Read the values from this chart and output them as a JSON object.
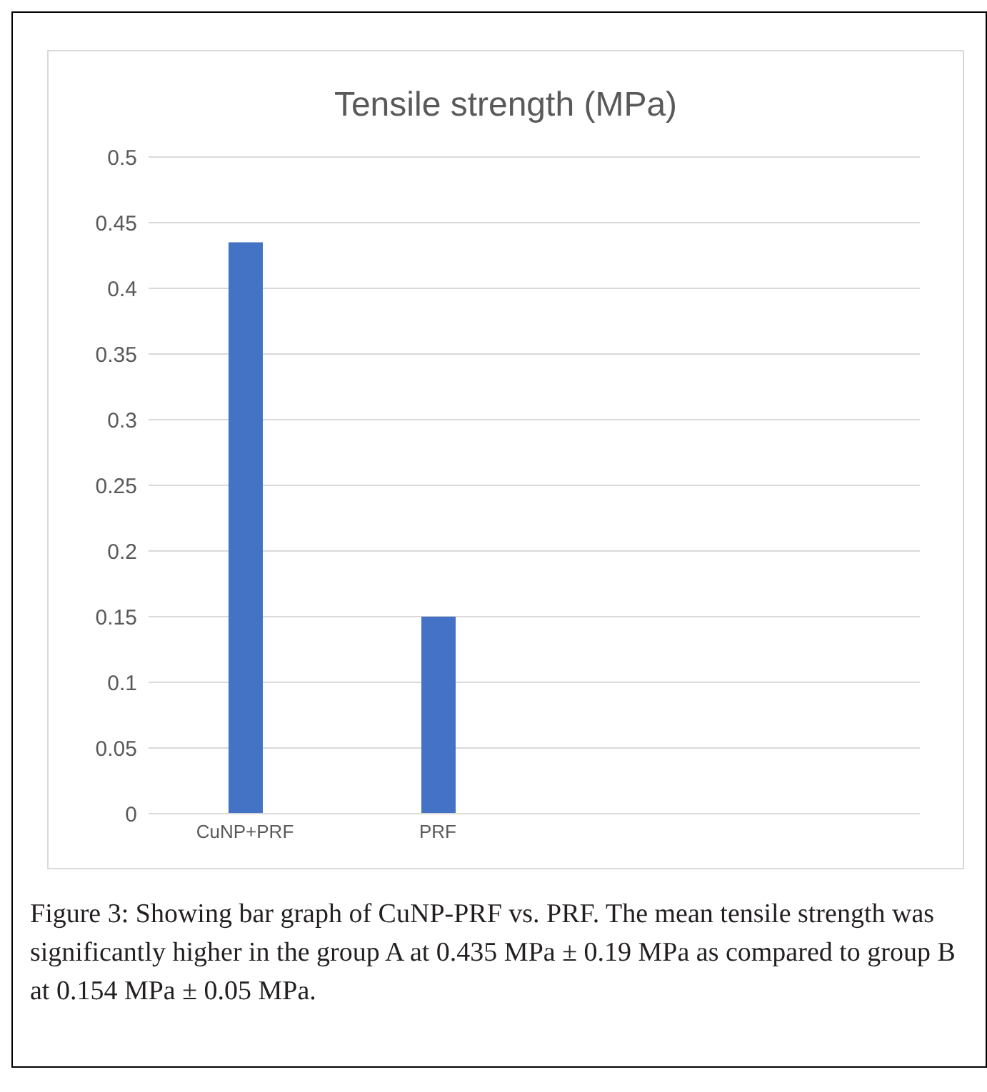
{
  "chart_data": {
    "type": "bar",
    "title": "Tensile strength (MPa)",
    "categories": [
      "CuNP+PRF",
      "PRF",
      null,
      null
    ],
    "values": [
      0.435,
      0.15,
      null,
      null
    ],
    "color": "#4472c4",
    "ylim": [
      0,
      0.5
    ],
    "yticks": [
      0,
      0.05,
      0.1,
      0.15,
      0.2,
      0.25,
      0.3,
      0.35,
      0.4,
      0.45,
      0.5
    ],
    "grid": "y",
    "annotations": [
      "Figure 3: Showing bar graph of CuNP-PRF vs. PRF. The mean tensile strength was significantly higher in the group A at 0.435 MPa ± 0.19 MPa as compared to group B at 0.154 MPa ± 0.05 MPa."
    ]
  }
}
